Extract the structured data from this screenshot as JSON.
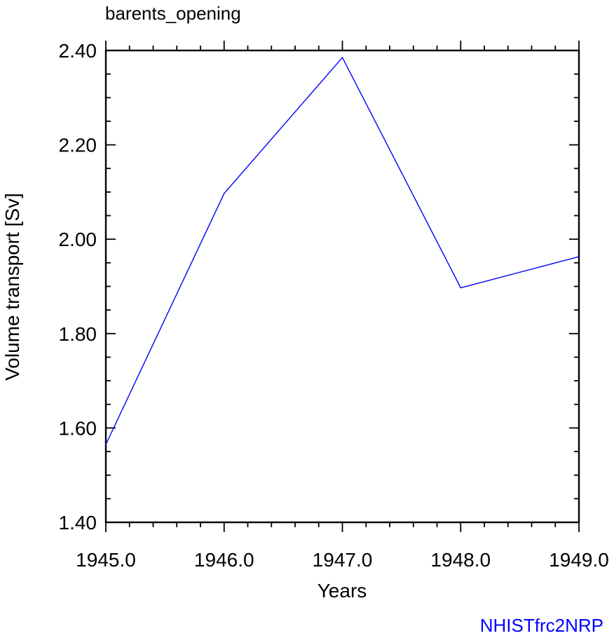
{
  "chart_data": {
    "type": "line",
    "title": "barents_opening",
    "xlabel": "Years",
    "ylabel": "Volume transport [Sv]",
    "xlim": [
      1945.0,
      1949.0
    ],
    "ylim": [
      1.4,
      2.4
    ],
    "x_ticks": [
      "1945.0",
      "1946.0",
      "1947.0",
      "1948.0",
      "1949.0"
    ],
    "y_ticks": [
      "1.40",
      "1.60",
      "1.80",
      "2.00",
      "2.20",
      "2.40"
    ],
    "grid": false,
    "series": [
      {
        "color": "#0000ff",
        "x": [
          1945.0,
          1946.0,
          1947.0,
          1948.0,
          1949.0
        ],
        "y": [
          1.565,
          2.097,
          2.385,
          1.897,
          1.963
        ]
      }
    ],
    "annotation": {
      "text": "NHISTfrc2NRP",
      "color": "#0000ff"
    }
  }
}
